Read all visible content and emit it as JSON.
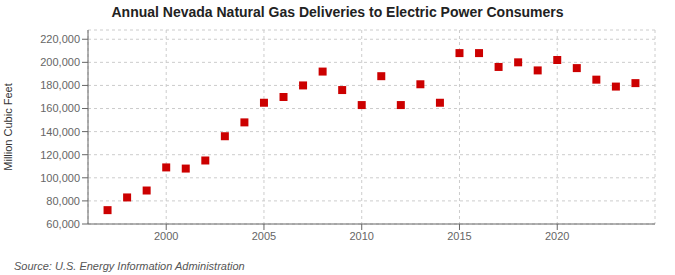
{
  "chart_data": {
    "type": "scatter",
    "title": "Annual Nevada Natural Gas Deliveries to Electric Power Consumers",
    "ylabel": "Million Cubic Feet",
    "annotation": "Source: U.S. Energy Information Administration",
    "color": "#cc0000",
    "marker": "square",
    "grid": true,
    "x": [
      1997,
      1998,
      1999,
      2000,
      2001,
      2002,
      2003,
      2004,
      2005,
      2006,
      2007,
      2008,
      2009,
      2010,
      2011,
      2012,
      2013,
      2014,
      2015,
      2016,
      2017,
      2018,
      2019,
      2020,
      2021,
      2022,
      2023,
      2024
    ],
    "values": [
      72000,
      83000,
      89000,
      109000,
      108000,
      115000,
      136000,
      148000,
      165000,
      170000,
      180000,
      192000,
      176000,
      163000,
      188000,
      163000,
      181000,
      165000,
      208000,
      208000,
      196000,
      200000,
      193000,
      202000,
      195000,
      185000,
      179000,
      182000
    ],
    "xlim": [
      1996,
      2025
    ],
    "xticks": [
      2000,
      2005,
      2010,
      2015,
      2020
    ],
    "ylim": [
      60000,
      228000
    ],
    "yticks": [
      {
        "value": 60000,
        "label": "60,000"
      },
      {
        "value": 80000,
        "label": "80,000"
      },
      {
        "value": 100000,
        "label": "100,000"
      },
      {
        "value": 120000,
        "label": "120,000"
      },
      {
        "value": 140000,
        "label": "140,000"
      },
      {
        "value": 160000,
        "label": "160,000"
      },
      {
        "value": 180000,
        "label": "180,000"
      },
      {
        "value": 200000,
        "label": "200,000"
      },
      {
        "value": 220000,
        "label": "220,000"
      }
    ]
  }
}
